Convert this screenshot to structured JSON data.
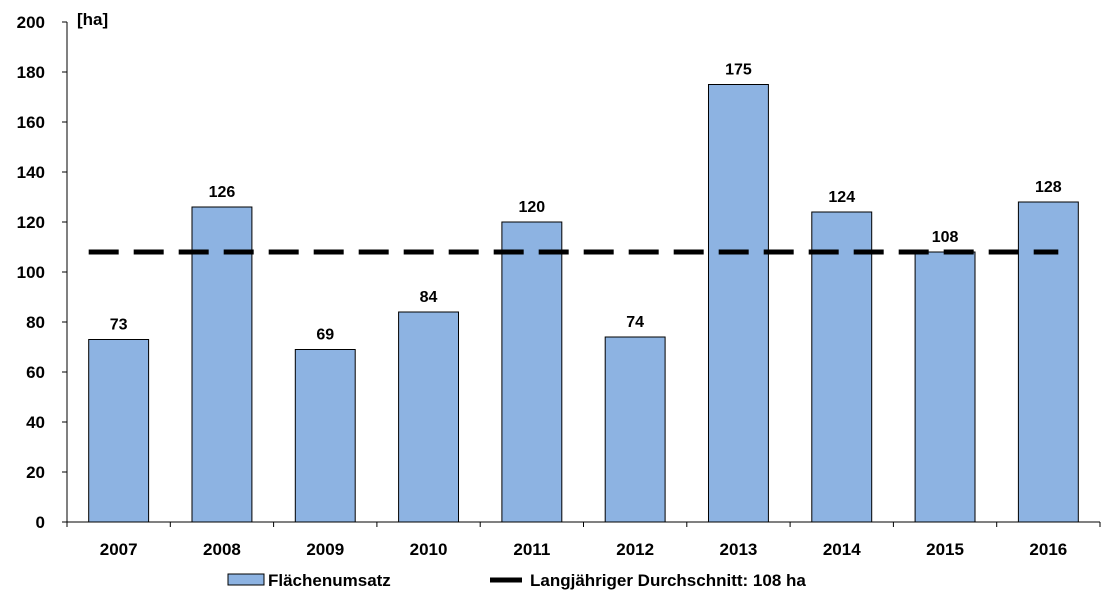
{
  "chart_data": {
    "type": "bar",
    "categories": [
      "2007",
      "2008",
      "2009",
      "2010",
      "2011",
      "2012",
      "2013",
      "2014",
      "2015",
      "2016"
    ],
    "series": [
      {
        "name": "Flächenumsatz",
        "values": [
          73,
          126,
          69,
          84,
          120,
          74,
          175,
          124,
          108,
          128
        ],
        "color": "#8db3e2"
      }
    ],
    "reference_line": {
      "name": "Langjähriger Durchschnitt: 108 ha",
      "value": 108,
      "style": "dashed",
      "color": "#000000"
    },
    "ylabel": "[ha]",
    "ylim": [
      0,
      200
    ],
    "yticks": [
      0,
      20,
      40,
      60,
      80,
      100,
      120,
      140,
      160,
      180,
      200
    ],
    "grid": false,
    "legend_position": "bottom",
    "data_labels": [
      "73",
      "126",
      "69",
      "84",
      "120",
      "74",
      "175",
      "124",
      "108",
      "128"
    ]
  }
}
